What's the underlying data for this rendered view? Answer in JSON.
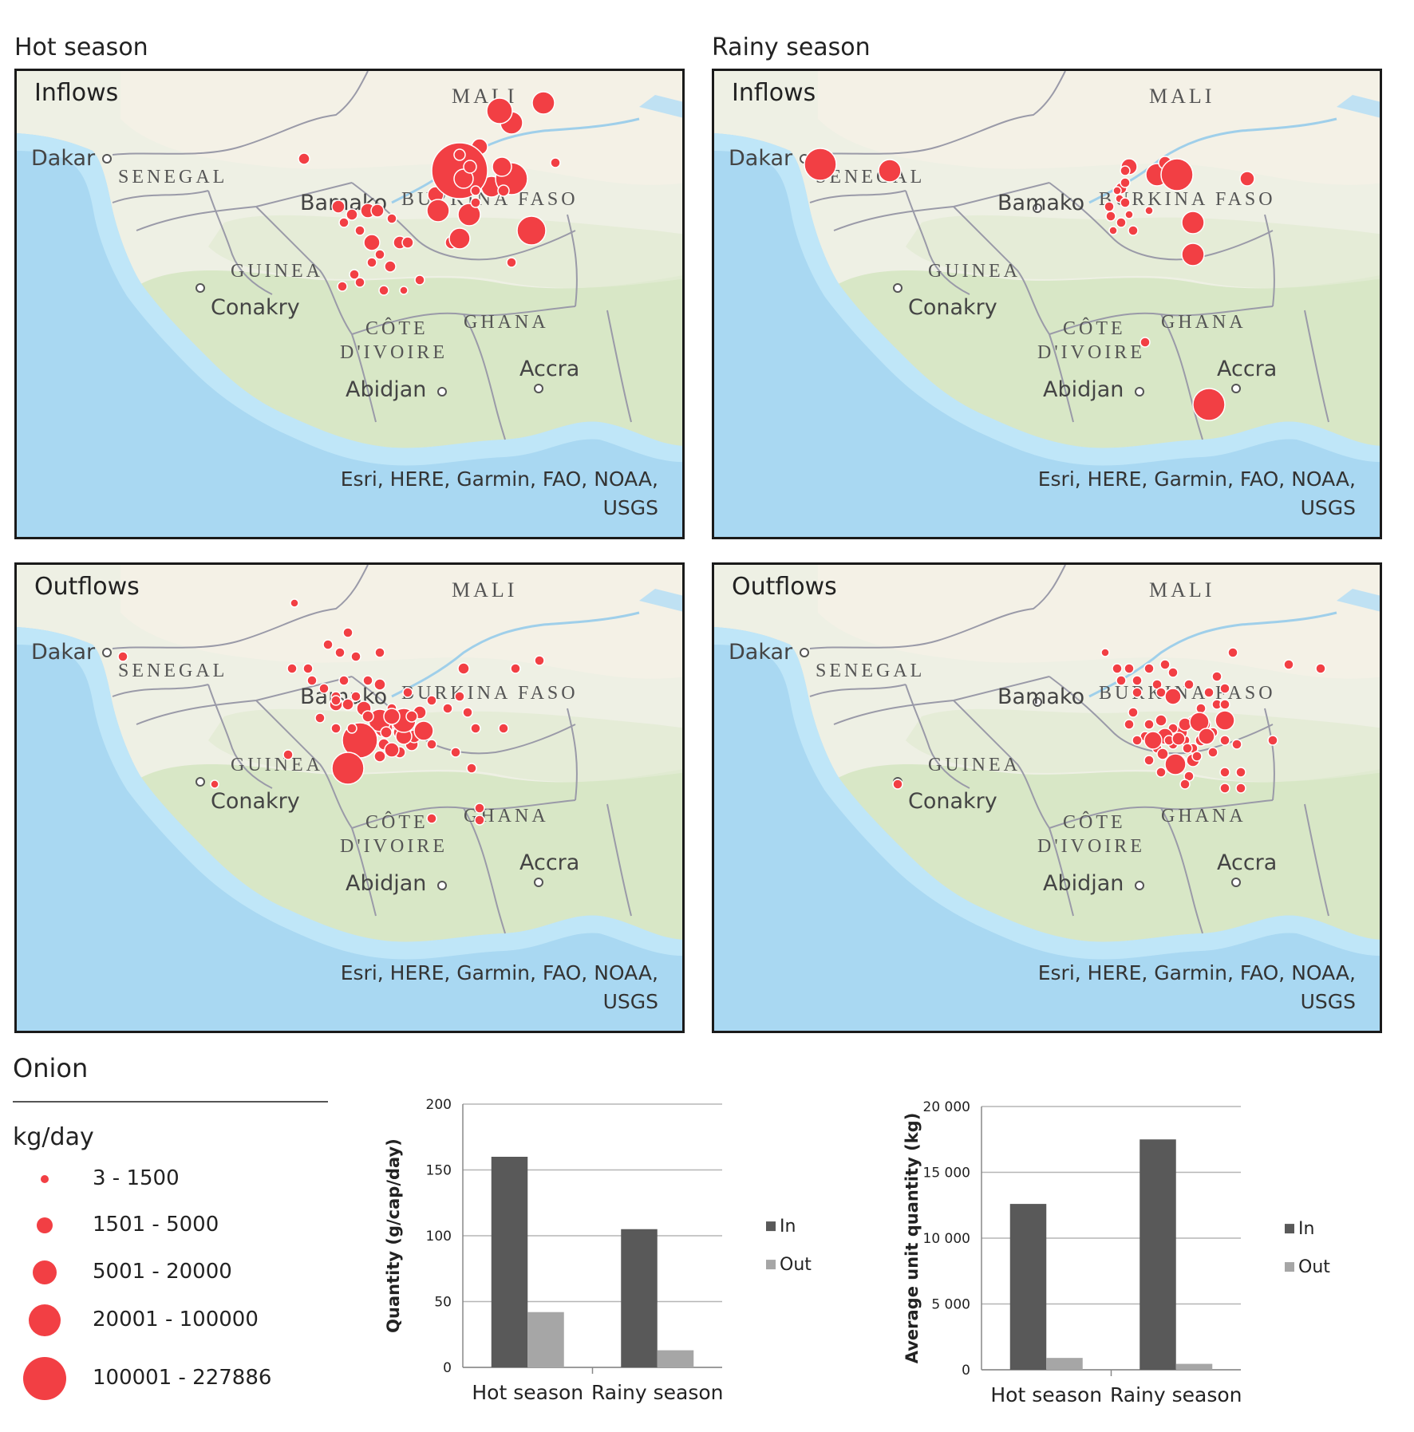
{
  "panels": {
    "hot_title": "Hot season",
    "rainy_title": "Rainy season",
    "inflows_label": "Inflows",
    "outflows_label": "Outflows",
    "attribution_line1": "Esri, HERE, Garmin, FAO, NOAA,",
    "attribution_line2": "USGS"
  },
  "map_labels": {
    "mali": "MALI",
    "senegal": "SENEGAL",
    "burkina": "BURKINA FASO",
    "guinea": "GUINEA",
    "cote1": "CÔTE",
    "cote2": "D'IVOIRE",
    "ghana": "GHANA",
    "dakar": "Dakar",
    "conakry": "Conakry",
    "abidjan": "Abidjan",
    "accra": "Accra",
    "bamako": "Bamako"
  },
  "colors": {
    "marker": "#f23f44",
    "in_bar": "#595959",
    "out_bar": "#a6a6a6",
    "water": "#a9d8f2",
    "land": "#eef0e4",
    "veg": "#d5e6c2"
  },
  "legend": {
    "title": "Onion",
    "unit": "kg/day",
    "classes": [
      "3 - 1500",
      "1501 - 5000",
      "5001 - 20000",
      "20001 - 100000",
      "100001 - 227886"
    ]
  },
  "chart_data": [
    {
      "type": "bar",
      "categories": [
        "Hot season",
        "Rainy season"
      ],
      "series": [
        {
          "name": "In",
          "values": [
            160,
            105
          ]
        },
        {
          "name": "Out",
          "values": [
            42,
            13
          ]
        }
      ],
      "ylabel": "Quantity  (g/cap/day)",
      "ylim": [
        0,
        200
      ],
      "yticks": [
        "0",
        "50",
        "100",
        "150",
        "200"
      ],
      "grid": true,
      "legend_position": "right"
    },
    {
      "type": "bar",
      "categories": [
        "Hot season",
        "Rainy season"
      ],
      "series": [
        {
          "name": "In",
          "values": [
            12600,
            17500
          ]
        },
        {
          "name": "Out",
          "values": [
            900,
            450
          ]
        }
      ],
      "ylabel": "Average unit quantity (kg)",
      "ylim": [
        0,
        20000
      ],
      "yticks": [
        "0",
        "5 000",
        "10 000",
        "15 000",
        "20 000"
      ],
      "grid": true,
      "legend_position": "right"
    }
  ]
}
